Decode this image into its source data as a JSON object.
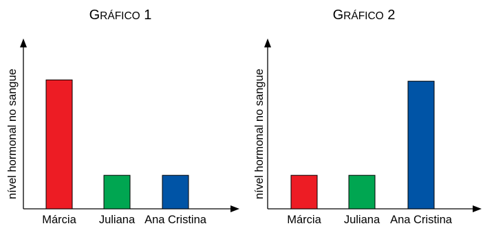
{
  "chart_data": [
    {
      "type": "bar",
      "title": "GRÁFICO 1",
      "ylabel": "nível hormonal no sangue",
      "xlabel": "",
      "categories": [
        "Márcia",
        "Juliana",
        "Ana Cristina"
      ],
      "values": [
        10,
        2.6,
        2.6
      ],
      "ylim": [
        0,
        13
      ],
      "colors": [
        "#ed1c24",
        "#00a651",
        "#0054a6"
      ],
      "grid": false
    },
    {
      "type": "bar",
      "title": "GRÁFICO 2",
      "ylabel": "nível hormonal no sangue",
      "xlabel": "",
      "categories": [
        "Márcia",
        "Juliana",
        "Ana Cristina"
      ],
      "values": [
        2.6,
        2.6,
        9.9
      ],
      "ylim": [
        0,
        13
      ],
      "colors": [
        "#ed1c24",
        "#00a651",
        "#0054a6"
      ],
      "grid": false
    }
  ]
}
